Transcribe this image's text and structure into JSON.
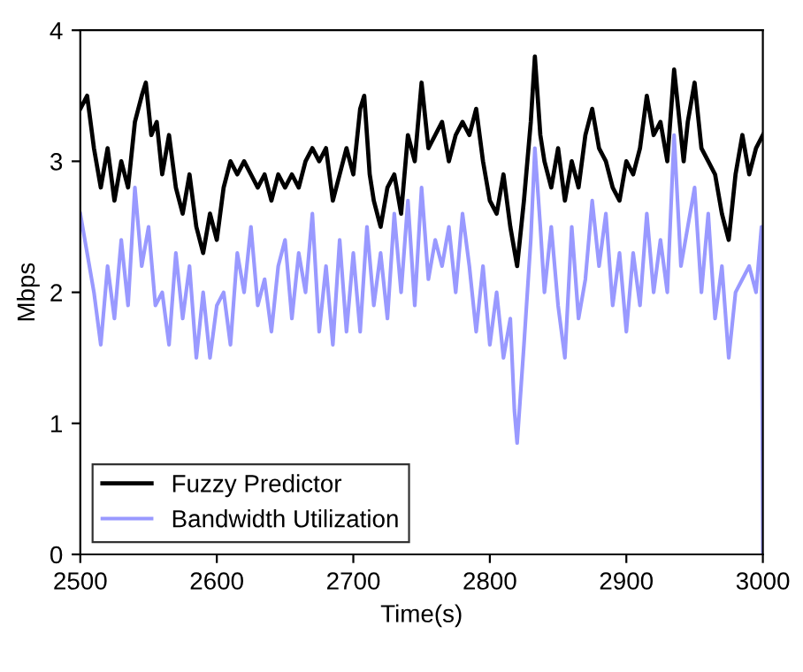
{
  "chart_data": {
    "type": "line",
    "xlabel": "Time(s)",
    "ylabel": "Mbps",
    "xlim": [
      2500,
      3000
    ],
    "ylim": [
      0,
      4
    ],
    "xticks": [
      2500,
      2600,
      2700,
      2800,
      2900,
      3000
    ],
    "yticks": [
      0,
      1,
      2,
      3,
      4
    ],
    "grid": false,
    "legend": "bottom left",
    "marker": "none",
    "line_style": "solid",
    "series": [
      {
        "name": "Fuzzy Predictor",
        "color": "#000000",
        "x": [
          2500,
          2505,
          2510,
          2515,
          2520,
          2525,
          2530,
          2535,
          2540,
          2545,
          2548,
          2552,
          2556,
          2560,
          2565,
          2570,
          2575,
          2580,
          2585,
          2590,
          2595,
          2600,
          2605,
          2610,
          2615,
          2620,
          2625,
          2630,
          2635,
          2640,
          2645,
          2650,
          2655,
          2660,
          2665,
          2670,
          2675,
          2680,
          2685,
          2690,
          2695,
          2700,
          2705,
          2708,
          2712,
          2715,
          2720,
          2725,
          2730,
          2735,
          2740,
          2745,
          2750,
          2755,
          2760,
          2765,
          2770,
          2775,
          2780,
          2785,
          2790,
          2795,
          2800,
          2805,
          2810,
          2815,
          2820,
          2825,
          2830,
          2833,
          2837,
          2840,
          2845,
          2850,
          2855,
          2860,
          2865,
          2870,
          2875,
          2880,
          2885,
          2890,
          2895,
          2900,
          2905,
          2910,
          2915,
          2920,
          2925,
          2930,
          2935,
          2938,
          2942,
          2945,
          2950,
          2955,
          2960,
          2965,
          2970,
          2975,
          2980,
          2985,
          2990,
          2995,
          3000
        ],
        "values": [
          3.4,
          3.5,
          3.1,
          2.8,
          3.1,
          2.7,
          3.0,
          2.8,
          3.3,
          3.5,
          3.6,
          3.2,
          3.3,
          2.9,
          3.2,
          2.8,
          2.6,
          2.9,
          2.5,
          2.3,
          2.6,
          2.4,
          2.8,
          3.0,
          2.9,
          3.0,
          2.9,
          2.8,
          2.9,
          2.7,
          2.9,
          2.8,
          2.9,
          2.8,
          3.0,
          3.1,
          3.0,
          3.1,
          2.7,
          2.9,
          3.1,
          2.9,
          3.4,
          3.5,
          2.9,
          2.7,
          2.5,
          2.8,
          2.9,
          2.6,
          3.2,
          3.0,
          3.6,
          3.1,
          3.2,
          3.3,
          3.0,
          3.2,
          3.3,
          3.2,
          3.4,
          3.0,
          2.7,
          2.6,
          2.9,
          2.5,
          2.2,
          2.7,
          3.3,
          3.8,
          3.2,
          3.0,
          2.8,
          3.1,
          2.7,
          3.0,
          2.8,
          3.2,
          3.4,
          3.1,
          3.0,
          2.8,
          2.7,
          3.0,
          2.9,
          3.1,
          3.5,
          3.2,
          3.3,
          3.0,
          3.7,
          3.4,
          3.0,
          3.3,
          3.6,
          3.1,
          3.0,
          2.9,
          2.6,
          2.4,
          2.9,
          3.2,
          2.9,
          3.1,
          3.2
        ]
      },
      {
        "name": "Bandwidth Utilization",
        "color": "#9999ff",
        "x": [
          2500,
          2505,
          2510,
          2515,
          2520,
          2525,
          2530,
          2535,
          2540,
          2545,
          2550,
          2555,
          2560,
          2565,
          2570,
          2575,
          2580,
          2585,
          2590,
          2595,
          2600,
          2605,
          2610,
          2615,
          2620,
          2625,
          2630,
          2635,
          2640,
          2645,
          2650,
          2655,
          2660,
          2665,
          2670,
          2675,
          2680,
          2685,
          2690,
          2695,
          2700,
          2705,
          2710,
          2715,
          2720,
          2725,
          2730,
          2735,
          2740,
          2745,
          2750,
          2755,
          2760,
          2765,
          2770,
          2775,
          2780,
          2785,
          2790,
          2795,
          2800,
          2805,
          2810,
          2815,
          2818,
          2820,
          2825,
          2830,
          2833,
          2837,
          2840,
          2845,
          2850,
          2855,
          2860,
          2865,
          2870,
          2875,
          2880,
          2885,
          2890,
          2895,
          2900,
          2905,
          2910,
          2915,
          2920,
          2925,
          2930,
          2935,
          2940,
          2945,
          2950,
          2955,
          2960,
          2965,
          2970,
          2975,
          2980,
          2985,
          2990,
          2995,
          2999,
          3000
        ],
        "values": [
          2.6,
          2.3,
          2.0,
          1.6,
          2.2,
          1.8,
          2.4,
          1.9,
          2.8,
          2.2,
          2.5,
          1.9,
          2.0,
          1.6,
          2.3,
          1.8,
          2.2,
          1.5,
          2.0,
          1.5,
          1.9,
          2.0,
          1.6,
          2.3,
          2.0,
          2.5,
          1.9,
          2.1,
          1.7,
          2.2,
          2.4,
          1.8,
          2.3,
          2.0,
          2.6,
          1.7,
          2.2,
          1.6,
          2.4,
          1.7,
          2.3,
          1.7,
          2.5,
          1.9,
          2.3,
          1.8,
          2.6,
          2.0,
          2.7,
          1.9,
          2.8,
          2.1,
          2.4,
          2.2,
          2.5,
          2.0,
          2.6,
          2.2,
          1.7,
          2.2,
          1.6,
          2.0,
          1.5,
          1.8,
          1.1,
          0.85,
          1.6,
          2.4,
          3.1,
          2.5,
          2.0,
          2.5,
          1.9,
          1.5,
          2.5,
          1.8,
          2.1,
          2.7,
          2.2,
          2.6,
          1.9,
          2.3,
          1.7,
          2.3,
          1.9,
          2.6,
          2.0,
          2.4,
          2.0,
          3.2,
          2.2,
          2.5,
          2.8,
          2.0,
          2.6,
          1.8,
          2.2,
          1.5,
          2.0,
          2.1,
          2.2,
          2.0,
          2.5,
          0
        ]
      }
    ]
  }
}
